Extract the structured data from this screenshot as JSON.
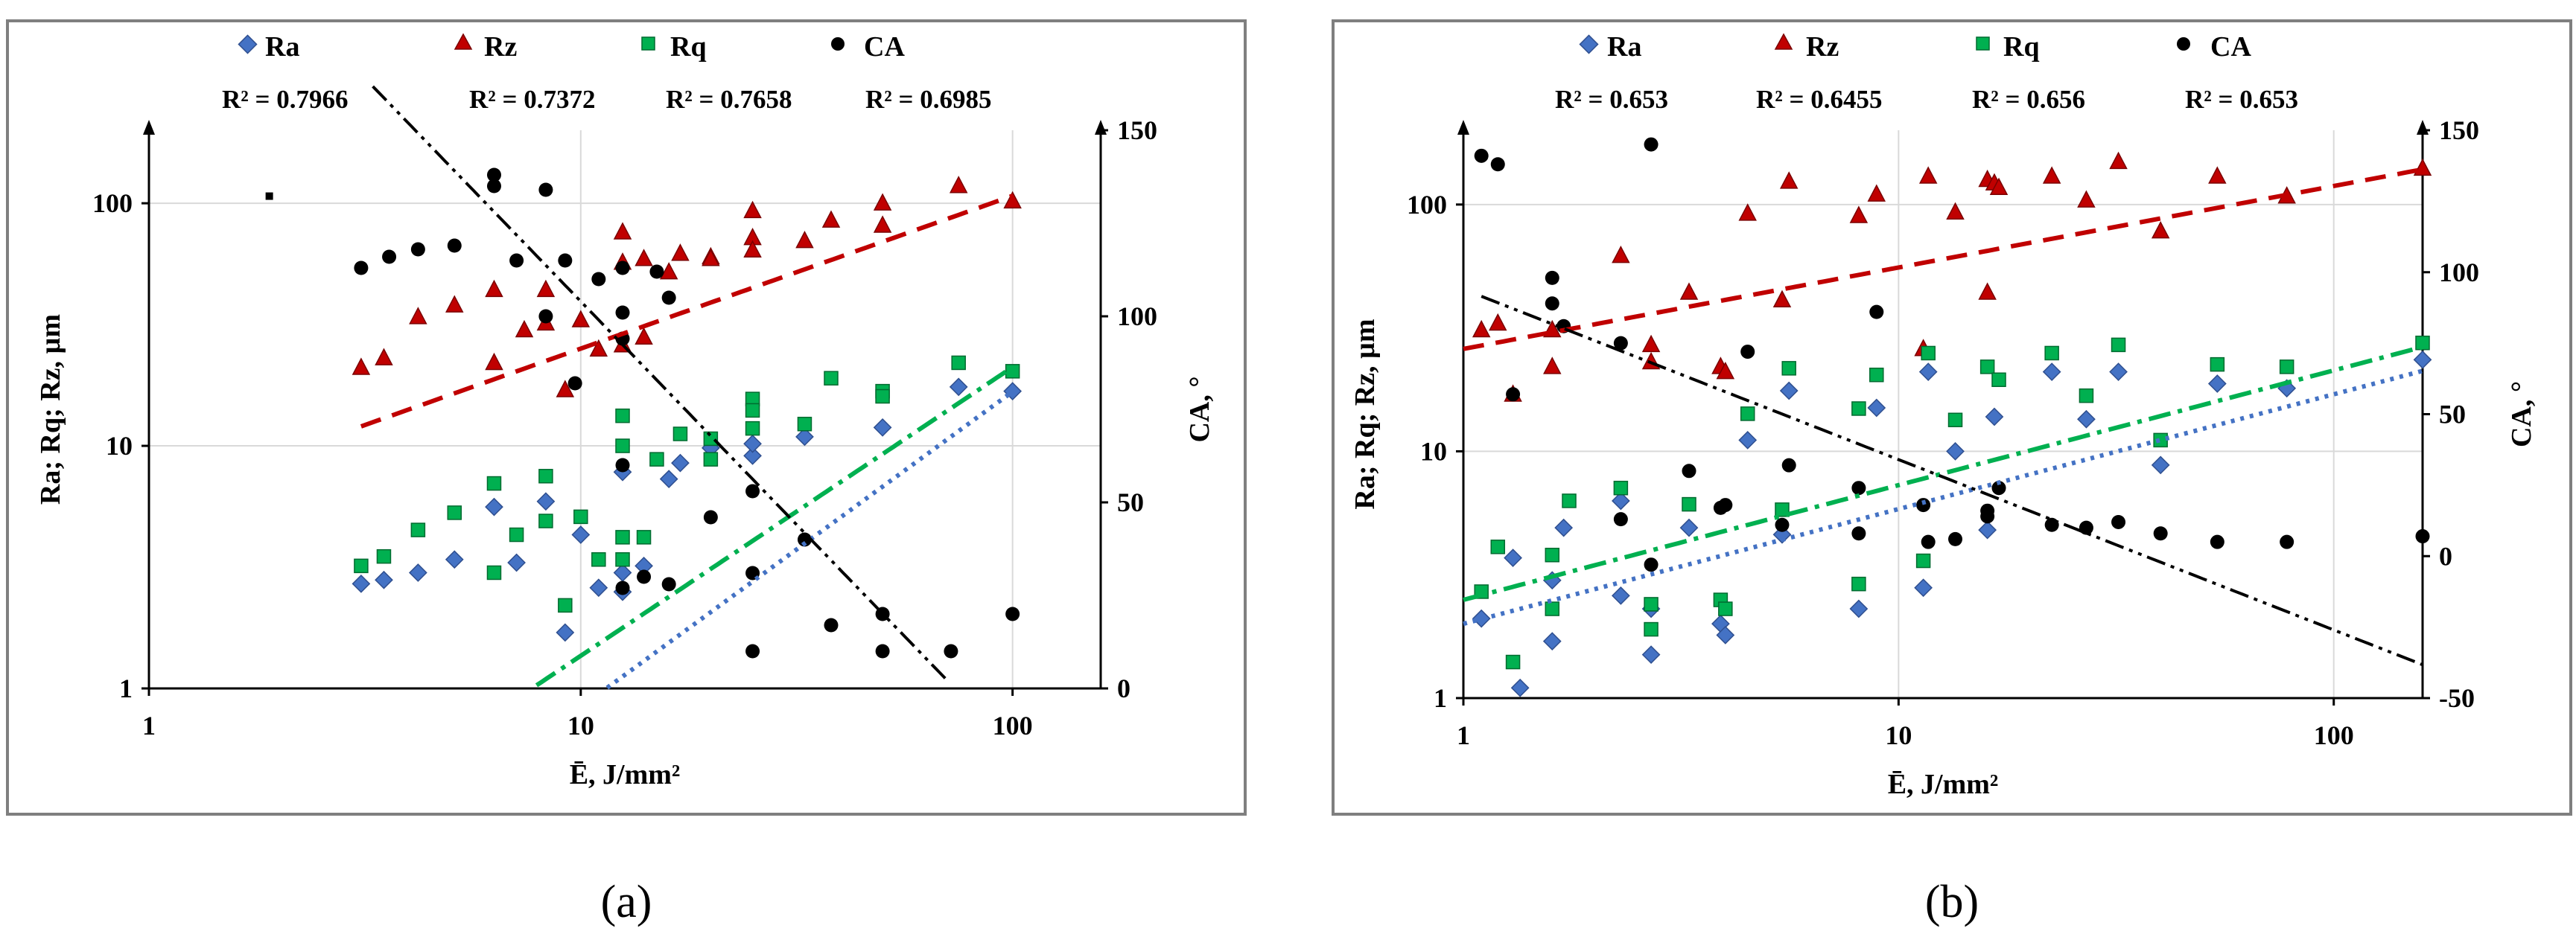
{
  "colors": {
    "ra": "#4472C4",
    "rz": "#C00000",
    "rq": "#00B050",
    "ca": "#000000",
    "grid": "#D9D9D9",
    "frame": "#7F7F7F"
  },
  "panels": [
    {
      "id": "a",
      "caption": "(a)",
      "legend": [
        {
          "key": "ra",
          "label": "Ra",
          "marker": "diamond",
          "r2": "R² = 0.7966"
        },
        {
          "key": "rz",
          "label": "Rz",
          "marker": "triangle",
          "r2": "R² = 0.7372"
        },
        {
          "key": "rq",
          "label": "Rq",
          "marker": "square",
          "r2": "R² = 0.7658"
        },
        {
          "key": "ca",
          "label": "CA",
          "marker": "circle",
          "r2": "R² = 0.6985"
        }
      ],
      "chart_data": {
        "type": "scatter",
        "xlabel": "Ē, J/mm²",
        "ylabel": "Ra; Rq; Rz, µm",
        "y2label": "CA, °",
        "x_scale": "log",
        "xlim": [
          1,
          160
        ],
        "y_scale": "log",
        "ylim": [
          1,
          200
        ],
        "y2lim": [
          0,
          150
        ],
        "x_ticks": [
          1,
          10,
          100
        ],
        "y_ticks": [
          1,
          10,
          100
        ],
        "y2_ticks": [
          0,
          50,
          100,
          150
        ],
        "series": [
          {
            "name": "Ra",
            "key": "ra",
            "axis": "left",
            "x": [
              3.1,
              3.5,
              4.2,
              5.1,
              6.3,
              7.1,
              8.3,
              9.2,
              10,
              11,
              12.5,
              12.5,
              12.5,
              14,
              16,
              17,
              20,
              25,
              25,
              33,
              50,
              75,
              100
            ],
            "y": [
              2.7,
              2.8,
              3.0,
              3.4,
              5.6,
              3.3,
              5.9,
              1.7,
              4.3,
              2.6,
              7.8,
              3.0,
              2.5,
              3.2,
              7.3,
              8.5,
              9.8,
              9.1,
              10.2,
              10.9,
              11.9,
              17.5,
              16.8
            ]
          },
          {
            "name": "Rz",
            "key": "rz",
            "axis": "left",
            "x": [
              3.1,
              3.5,
              4.2,
              5.1,
              6.3,
              6.3,
              7.4,
              8.3,
              8.3,
              9.2,
              10,
              11,
              12.5,
              12.5,
              12.5,
              14,
              14,
              16,
              17,
              20,
              20,
              25,
              25,
              25,
              33,
              38,
              50,
              50,
              75,
              100
            ],
            "y": [
              21,
              23,
              34,
              38,
              44,
              22,
              30,
              32,
              44,
              17,
              33,
              25,
              26,
              57,
              76,
              59,
              28,
              52,
              62,
              60,
              59,
              93,
              72,
              64,
              70,
              85,
              81,
              100,
              118,
              102
            ]
          },
          {
            "name": "Rq",
            "key": "rq",
            "axis": "left",
            "x": [
              3.1,
              3.5,
              4.2,
              5.1,
              6.3,
              6.3,
              7.1,
              8.3,
              8.3,
              9.2,
              10,
              11,
              12.5,
              12.5,
              12.5,
              12.5,
              14,
              15,
              17,
              20,
              20,
              25,
              25,
              25,
              33,
              38,
              50,
              50,
              75,
              100
            ],
            "y": [
              3.2,
              3.5,
              4.5,
              5.3,
              7.0,
              3.0,
              4.3,
              7.5,
              4.9,
              2.2,
              5.1,
              3.4,
              10.0,
              13.3,
              3.4,
              4.2,
              4.2,
              8.8,
              11.2,
              10.7,
              8.8,
              11.8,
              15.6,
              14.0,
              12.3,
              19.0,
              16.8,
              16.0,
              22.0,
              20.3
            ]
          },
          {
            "name": "CA",
            "key": "ca",
            "axis": "right",
            "x": [
              3.1,
              3.6,
              4.2,
              5.1,
              6.3,
              6.3,
              7.1,
              8.3,
              8.3,
              9.2,
              9.7,
              11,
              12.5,
              12.5,
              12.5,
              12.5,
              12.5,
              14,
              15,
              16,
              16,
              20,
              25,
              25,
              25,
              33,
              38,
              50,
              50,
              72,
              100
            ],
            "y": [
              113,
              116,
              118,
              119,
              138,
              135,
              115,
              134,
              100,
              115,
              82,
              110,
              94,
              113,
              101,
              60,
              27,
              30,
              112,
              105,
              28,
              46,
              53,
              31,
              10,
              40,
              17,
              10,
              20,
              10,
              20
            ]
          }
        ],
        "trendlines": [
          {
            "key": "rz",
            "kind": "power",
            "a": 5.9,
            "b": 0.63,
            "x_from": 3.1,
            "x_to": 100
          },
          {
            "key": "rq",
            "kind": "power",
            "a": 0.088,
            "b": 1.19,
            "x_from": 3.65,
            "x_to": 100
          },
          {
            "key": "ra",
            "kind": "power",
            "a": 0.042,
            "b": 1.3,
            "x_from": 3.75,
            "x_to": 100
          },
          {
            "key": "ca",
            "kind": "linear-log",
            "a": 224,
            "b": -120,
            "x_from": 3.3,
            "x_to": 71
          }
        ],
        "stray_marker": {
          "x": 1.9,
          "y": 107
        }
      }
    },
    {
      "id": "b",
      "caption": "(b)",
      "legend": [
        {
          "key": "ra",
          "label": "Ra",
          "marker": "diamond",
          "r2": "R² = 0.653"
        },
        {
          "key": "rz",
          "label": "Rz",
          "marker": "triangle",
          "r2": "R² = 0.6455"
        },
        {
          "key": "rq",
          "label": "Rq",
          "marker": "square",
          "r2": "R² = 0.656"
        },
        {
          "key": "ca",
          "label": "CA",
          "marker": "circle",
          "r2": "R² = 0.653"
        }
      ],
      "chart_data": {
        "type": "scatter",
        "xlabel": "Ē, J/mm²",
        "ylabel": "Ra; Rq; Rz, µm",
        "y2label": "CA, °",
        "x_scale": "log",
        "xlim": [
          1,
          160
        ],
        "y_scale": "log",
        "ylim": [
          1,
          200
        ],
        "y2lim": [
          -50,
          150
        ],
        "x_ticks": [
          1,
          10,
          100
        ],
        "y_ticks": [
          1,
          10,
          100
        ],
        "y2_ticks": [
          -50,
          0,
          50,
          100,
          150
        ],
        "series": [
          {
            "name": "Ra",
            "key": "ra",
            "axis": "left",
            "x": [
              1.1,
              1.3,
              1.35,
              1.6,
              1.6,
              1.7,
              2.3,
              2.3,
              2.7,
              2.7,
              3.3,
              3.9,
              4.0,
              4.5,
              5.4,
              5.6,
              8.1,
              8.9,
              11.4,
              11.7,
              13.5,
              16,
              16.6,
              22.5,
              27,
              32,
              40,
              54,
              78,
              160
            ],
            "y": [
              2.1,
              3.7,
              1.1,
              1.7,
              3.0,
              4.9,
              2.6,
              6.3,
              1.5,
              2.3,
              4.9,
              2.0,
              1.8,
              11.1,
              4.6,
              17.6,
              2.3,
              15.0,
              2.8,
              21.0,
              10.0,
              4.8,
              13.8,
              21.0,
              13.5,
              21.0,
              8.8,
              18.8,
              18.0,
              23.5
            ]
          },
          {
            "name": "Rz",
            "key": "rz",
            "axis": "left",
            "x": [
              1.1,
              1.2,
              1.3,
              1.6,
              1.6,
              2.3,
              2.7,
              2.7,
              3.3,
              3.9,
              4.0,
              4.5,
              5.4,
              5.6,
              8.1,
              8.9,
              11.4,
              11.7,
              13.5,
              16,
              16,
              16.6,
              17,
              22.5,
              27,
              32,
              40,
              54,
              78,
              160
            ],
            "y": [
              31,
              33,
              17,
              31,
              22,
              62,
              27,
              23,
              44,
              22,
              21,
              92,
              41,
              124,
              90,
              110,
              26,
              130,
              93,
              126,
              44,
              122,
              117,
              130,
              104,
              149,
              78,
              130,
              108,
              140
            ]
          },
          {
            "name": "Rq",
            "key": "rq",
            "axis": "left",
            "x": [
              1.1,
              1.2,
              1.3,
              1.6,
              1.6,
              1.75,
              2.3,
              2.7,
              2.7,
              3.3,
              3.9,
              4.0,
              4.5,
              5.4,
              5.6,
              8.1,
              8.1,
              8.9,
              11.4,
              11.7,
              13.5,
              16,
              17,
              22.5,
              27,
              32,
              40,
              54,
              78,
              160
            ],
            "y": [
              2.7,
              4.1,
              1.4,
              3.8,
              2.3,
              6.3,
              7.1,
              2.4,
              1.9,
              6.1,
              2.5,
              2.3,
              14.2,
              5.8,
              21.7,
              2.9,
              14.9,
              20.4,
              3.6,
              25.0,
              13.4,
              22.0,
              19.5,
              25.0,
              16.8,
              27.0,
              11.1,
              22.5,
              22.0,
              27.5
            ]
          },
          {
            "name": "CA",
            "key": "ca",
            "axis": "right",
            "x": [
              1.1,
              1.2,
              1.3,
              1.6,
              1.6,
              1.7,
              2.3,
              2.3,
              2.7,
              2.7,
              3.3,
              3.9,
              4.0,
              4.5,
              5.4,
              5.6,
              8.1,
              8.1,
              8.9,
              11.4,
              11.7,
              13.5,
              16,
              16,
              17,
              22.5,
              27,
              32,
              40,
              54,
              78,
              160
            ],
            "y": [
              141,
              138,
              57,
              98,
              89,
              81,
              75,
              13,
              145,
              -3,
              30,
              17,
              18,
              72,
              11,
              32,
              8,
              24,
              86,
              18,
              5,
              6,
              16,
              14,
              24,
              11,
              10,
              12,
              8,
              5,
              5,
              7
            ]
          }
        ],
        "trendlines": [
          {
            "key": "rz",
            "kind": "power",
            "a": 26,
            "b": 0.33,
            "x_from": 1.0,
            "x_to": 160
          },
          {
            "key": "rq",
            "kind": "power",
            "a": 2.5,
            "b": 0.465,
            "x_from": 1.0,
            "x_to": 160
          },
          {
            "key": "ra",
            "kind": "power",
            "a": 2.0,
            "b": 0.465,
            "x_from": 1.0,
            "x_to": 160
          },
          {
            "key": "ca",
            "kind": "linear-log",
            "a": 94,
            "b": -60,
            "x_from": 1.1,
            "x_to": 160
          }
        ]
      }
    }
  ]
}
